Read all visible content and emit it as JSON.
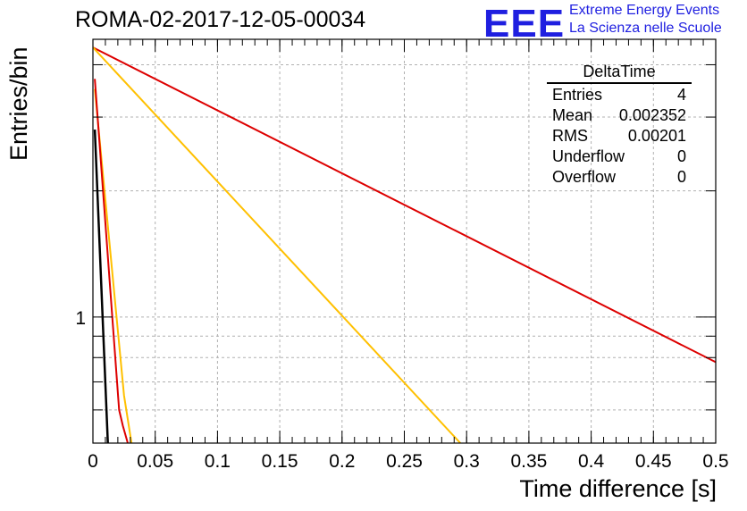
{
  "header": {
    "title": "ROMA-02-2017-12-05-00034",
    "logo_text": "EEE",
    "org_line1": "Extreme Energy Events",
    "org_line2": "La Scienza nelle Scuole"
  },
  "colors": {
    "logo": "#1f1fe0",
    "grid": "#b0b0b0",
    "axis": "#000000"
  },
  "stats_box": {
    "title": "DeltaTime",
    "rows": [
      {
        "label": "Entries",
        "value": "4"
      },
      {
        "label": "Mean",
        "value": "0.002352"
      },
      {
        "label": "RMS",
        "value": "0.00201"
      },
      {
        "label": "Underflow",
        "value": "0"
      },
      {
        "label": "Overflow",
        "value": "0"
      }
    ]
  },
  "chart_data": {
    "type": "line",
    "title": "ROMA-02-2017-12-05-00034",
    "xlabel": "Time difference [s]",
    "ylabel": "Entries/bin",
    "xlim": [
      0,
      0.5
    ],
    "ylim": [
      0.5,
      4.6
    ],
    "yscale": "log",
    "grid": true,
    "x_ticks": [
      "0",
      "0.05",
      "0.1",
      "0.15",
      "0.2",
      "0.25",
      "0.3",
      "0.35",
      "0.4",
      "0.45",
      "0.5"
    ],
    "y_ticks": [
      "1"
    ],
    "series": [
      {
        "color": "#dd0000",
        "points": [
          [
            0,
            4.4
          ],
          [
            0.5,
            0.78
          ]
        ]
      },
      {
        "color": "#ffc000",
        "points": [
          [
            0,
            4.4
          ],
          [
            0.295,
            0.5
          ]
        ]
      },
      {
        "color": "#ffc000",
        "points": [
          [
            0.0015,
            3.5
          ],
          [
            0.025,
            0.65
          ],
          [
            0.031,
            0.5
          ]
        ]
      },
      {
        "color": "#dd0000",
        "points": [
          [
            0.0015,
            3.7
          ],
          [
            0.021,
            0.6
          ],
          [
            0.024,
            0.55
          ],
          [
            0.028,
            0.5
          ]
        ]
      },
      {
        "color": "#000000",
        "points": [
          [
            0.0015,
            2.8
          ],
          [
            0.012,
            0.5
          ]
        ]
      }
    ]
  }
}
